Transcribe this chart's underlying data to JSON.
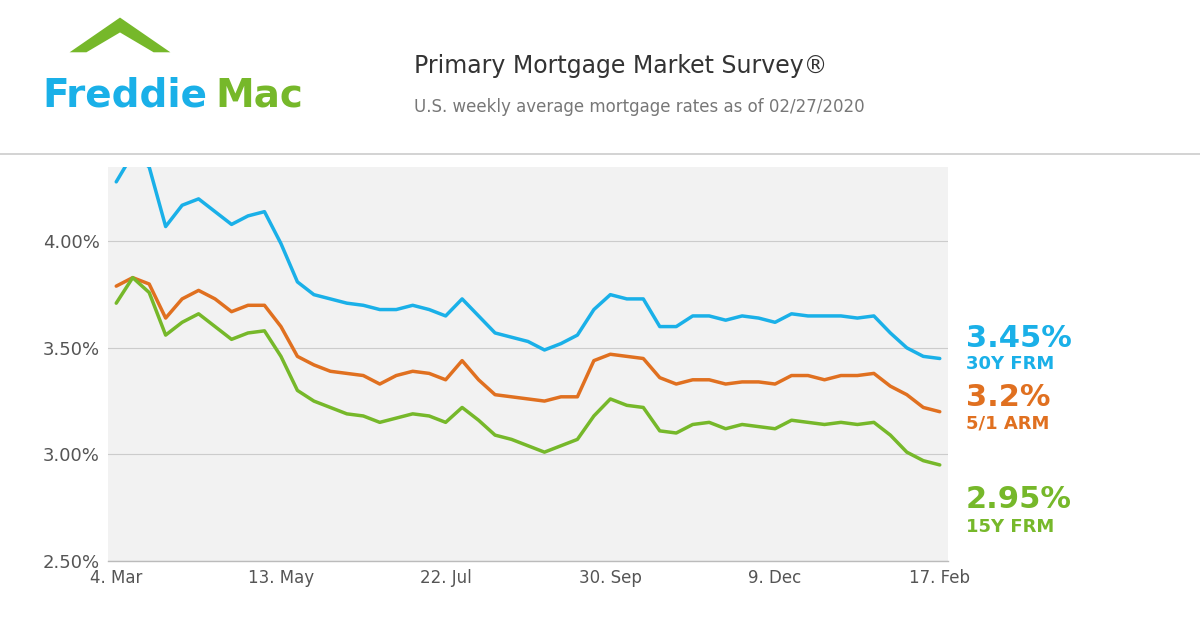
{
  "title": "Primary Mortgage Market Survey®",
  "subtitle": "U.S. weekly average mortgage rates as of 02/27/2020",
  "title_color": "#333333",
  "subtitle_color": "#777777",
  "freddie_blue": "#1ab0e8",
  "freddie_green": "#76b82a",
  "plot_background": "#f2f2f2",
  "ylim": [
    2.5,
    4.35
  ],
  "yticks": [
    2.5,
    3.0,
    3.5,
    4.0
  ],
  "ytick_labels": [
    "2.50%",
    "3.00%",
    "3.50%",
    "4.00%"
  ],
  "xtick_labels": [
    "4. Mar",
    "13. May",
    "22. Jul",
    "30. Sep",
    "9. Dec",
    "17. Feb"
  ],
  "line_30Y_color": "#1ab0e8",
  "line_15Y_color": "#76b82a",
  "line_5ARM_color": "#e07020",
  "line_width": 2.5,
  "label_30Y_value": "3.45%",
  "label_30Y_name": "30Y FRM",
  "label_15Y_value": "2.95%",
  "label_15Y_name": "15Y FRM",
  "label_5ARM_value": "3.2%",
  "label_5ARM_name": "5/1 ARM",
  "data_30Y": [
    4.28,
    4.41,
    4.35,
    4.07,
    4.17,
    4.2,
    4.14,
    4.08,
    4.12,
    4.14,
    3.99,
    3.81,
    3.75,
    3.73,
    3.71,
    3.7,
    3.68,
    3.68,
    3.7,
    3.68,
    3.65,
    3.73,
    3.65,
    3.57,
    3.55,
    3.53,
    3.49,
    3.52,
    3.56,
    3.68,
    3.75,
    3.73,
    3.73,
    3.6,
    3.6,
    3.65,
    3.65,
    3.63,
    3.65,
    3.64,
    3.62,
    3.66,
    3.65,
    3.65,
    3.65,
    3.64,
    3.65,
    3.57,
    3.5,
    3.46,
    3.45
  ],
  "data_15Y": [
    3.71,
    3.83,
    3.76,
    3.56,
    3.62,
    3.66,
    3.6,
    3.54,
    3.57,
    3.58,
    3.46,
    3.3,
    3.25,
    3.22,
    3.19,
    3.18,
    3.15,
    3.17,
    3.19,
    3.18,
    3.15,
    3.22,
    3.16,
    3.09,
    3.07,
    3.04,
    3.01,
    3.04,
    3.07,
    3.18,
    3.26,
    3.23,
    3.22,
    3.11,
    3.1,
    3.14,
    3.15,
    3.12,
    3.14,
    3.13,
    3.12,
    3.16,
    3.15,
    3.14,
    3.15,
    3.14,
    3.15,
    3.09,
    3.01,
    2.97,
    2.95
  ],
  "data_5ARM": [
    3.79,
    3.83,
    3.8,
    3.64,
    3.73,
    3.77,
    3.73,
    3.67,
    3.7,
    3.7,
    3.6,
    3.46,
    3.42,
    3.39,
    3.38,
    3.37,
    3.33,
    3.37,
    3.39,
    3.38,
    3.35,
    3.44,
    3.35,
    3.28,
    3.27,
    3.26,
    3.25,
    3.27,
    3.27,
    3.44,
    3.47,
    3.46,
    3.45,
    3.36,
    3.33,
    3.35,
    3.35,
    3.33,
    3.34,
    3.34,
    3.33,
    3.37,
    3.37,
    3.35,
    3.37,
    3.37,
    3.38,
    3.32,
    3.28,
    3.22,
    3.2
  ]
}
